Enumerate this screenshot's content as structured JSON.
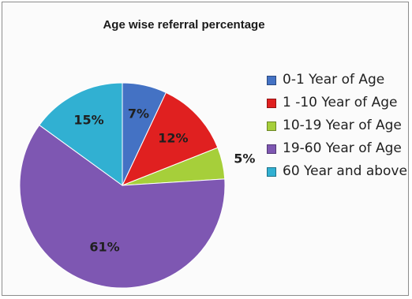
{
  "chart_data": {
    "type": "pie",
    "title": "Age wise referral percentage",
    "categories": [
      "0-1 Year of Age",
      "1 -10 Year of Age",
      "10-19 Year of Age",
      "19-60  Year of Age",
      "60 Year and above"
    ],
    "values": [
      7,
      12,
      5,
      61,
      15
    ],
    "labels": [
      "7%",
      "12%",
      "5%",
      "61%",
      "15%"
    ],
    "colors": [
      "#4472c4",
      "#e02020",
      "#a6cf3a",
      "#7e57b2",
      "#31b0d2"
    ],
    "legend_position": "right"
  }
}
